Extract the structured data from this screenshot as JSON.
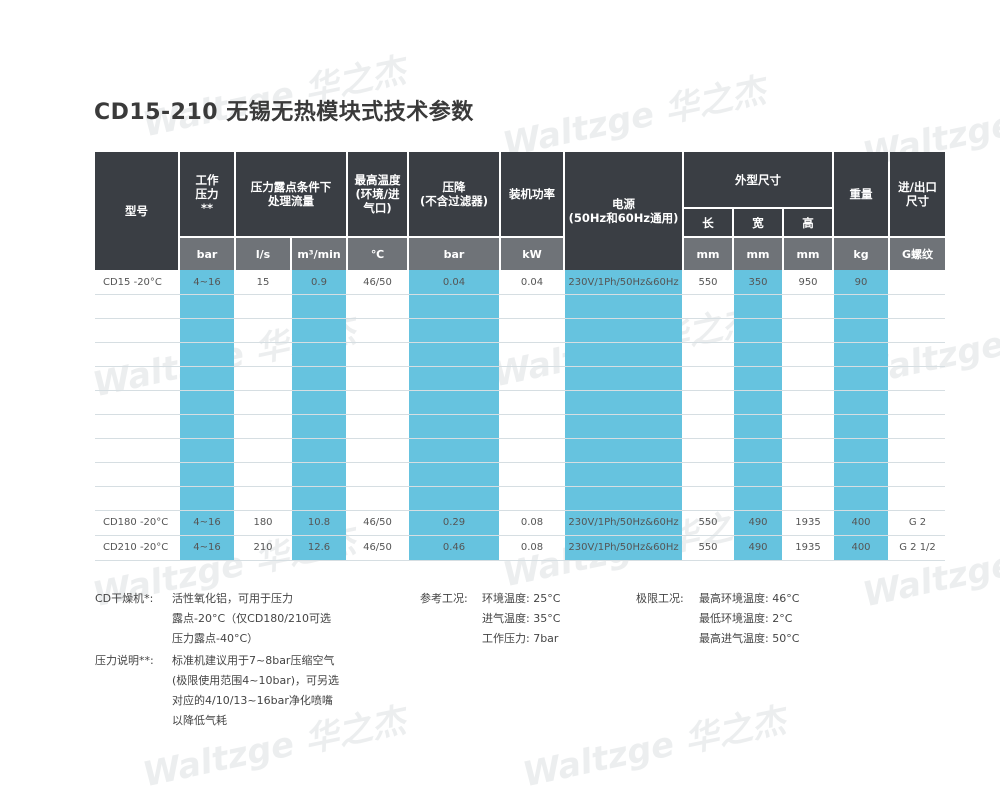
{
  "title": "CD15-210 无锡无热模块式技术参数",
  "watermark": "Waltzge 华之杰",
  "headers": {
    "model": "型号",
    "pressure": [
      "工作",
      "压力",
      "**"
    ],
    "flow": [
      "压力露点条件下",
      "处理流量"
    ],
    "maxtemp": [
      "最高温度",
      "(环境/进",
      "气口)"
    ],
    "pdrop": [
      "压降",
      "(不含过滤器)"
    ],
    "power": "装机功率",
    "supply": [
      "电源",
      "(50Hz和60Hz通用)"
    ],
    "dims": "外型尺寸",
    "dim_l": "长",
    "dim_w": "宽",
    "dim_h": "高",
    "weight": "重量",
    "port": [
      "进/出口",
      "尺寸"
    ]
  },
  "units": [
    "bar",
    "l/s",
    "m³/min",
    "℃",
    "bar",
    "kW",
    "mm",
    "mm",
    "mm",
    "kg",
    "G螺纹"
  ],
  "rows": [
    {
      "model": "CD15 -20°C",
      "pressure": "4~16",
      "flow_ls": "15",
      "flow_m3": "0.9",
      "temp": "46/50",
      "pdrop": "0.04",
      "power": "0.04",
      "supply": "230V/1Ph/50Hz&60Hz",
      "l": "550",
      "w": "350",
      "h": "950",
      "kg": "90",
      "port": ""
    },
    {
      "model": "CD180 -20°C",
      "pressure": "4~16",
      "flow_ls": "180",
      "flow_m3": "10.8",
      "temp": "46/50",
      "pdrop": "0.29",
      "power": "0.08",
      "supply": "230V/1Ph/50Hz&60Hz",
      "l": "550",
      "w": "490",
      "h": "1935",
      "kg": "400",
      "port": "G 2"
    },
    {
      "model": "CD210 -20°C",
      "pressure": "4~16",
      "flow_ls": "210",
      "flow_m3": "12.6",
      "temp": "46/50",
      "pdrop": "0.46",
      "power": "0.08",
      "supply": "230V/1Ph/50Hz&60Hz",
      "l": "550",
      "w": "490",
      "h": "1935",
      "kg": "400",
      "port": "G 2 1/2"
    }
  ],
  "notes": {
    "cd_label": "CD干燥机*:",
    "cd_lines": [
      "活性氧化铝，可用于压力",
      "露点-20°C（仅CD180/210可选",
      "压力露点-40°C）"
    ],
    "pressure_label": "压力说明**:",
    "pressure_lines": [
      "标准机建议用于7~8bar压缩空气",
      "(极限使用范围4~10bar)，可另选",
      "对应的4/10/13~16bar净化喷嘴",
      "以降低气耗"
    ],
    "ref_label": "参考工况:",
    "ref_lines": [
      "环境温度: 25°C",
      "进气温度: 35°C",
      "工作压力: 7bar"
    ],
    "limit_label": "极限工况:",
    "limit_lines": [
      "最高环境温度: 46°C",
      "最低环境温度: 2°C",
      "最高进气温度: 50°C"
    ]
  }
}
